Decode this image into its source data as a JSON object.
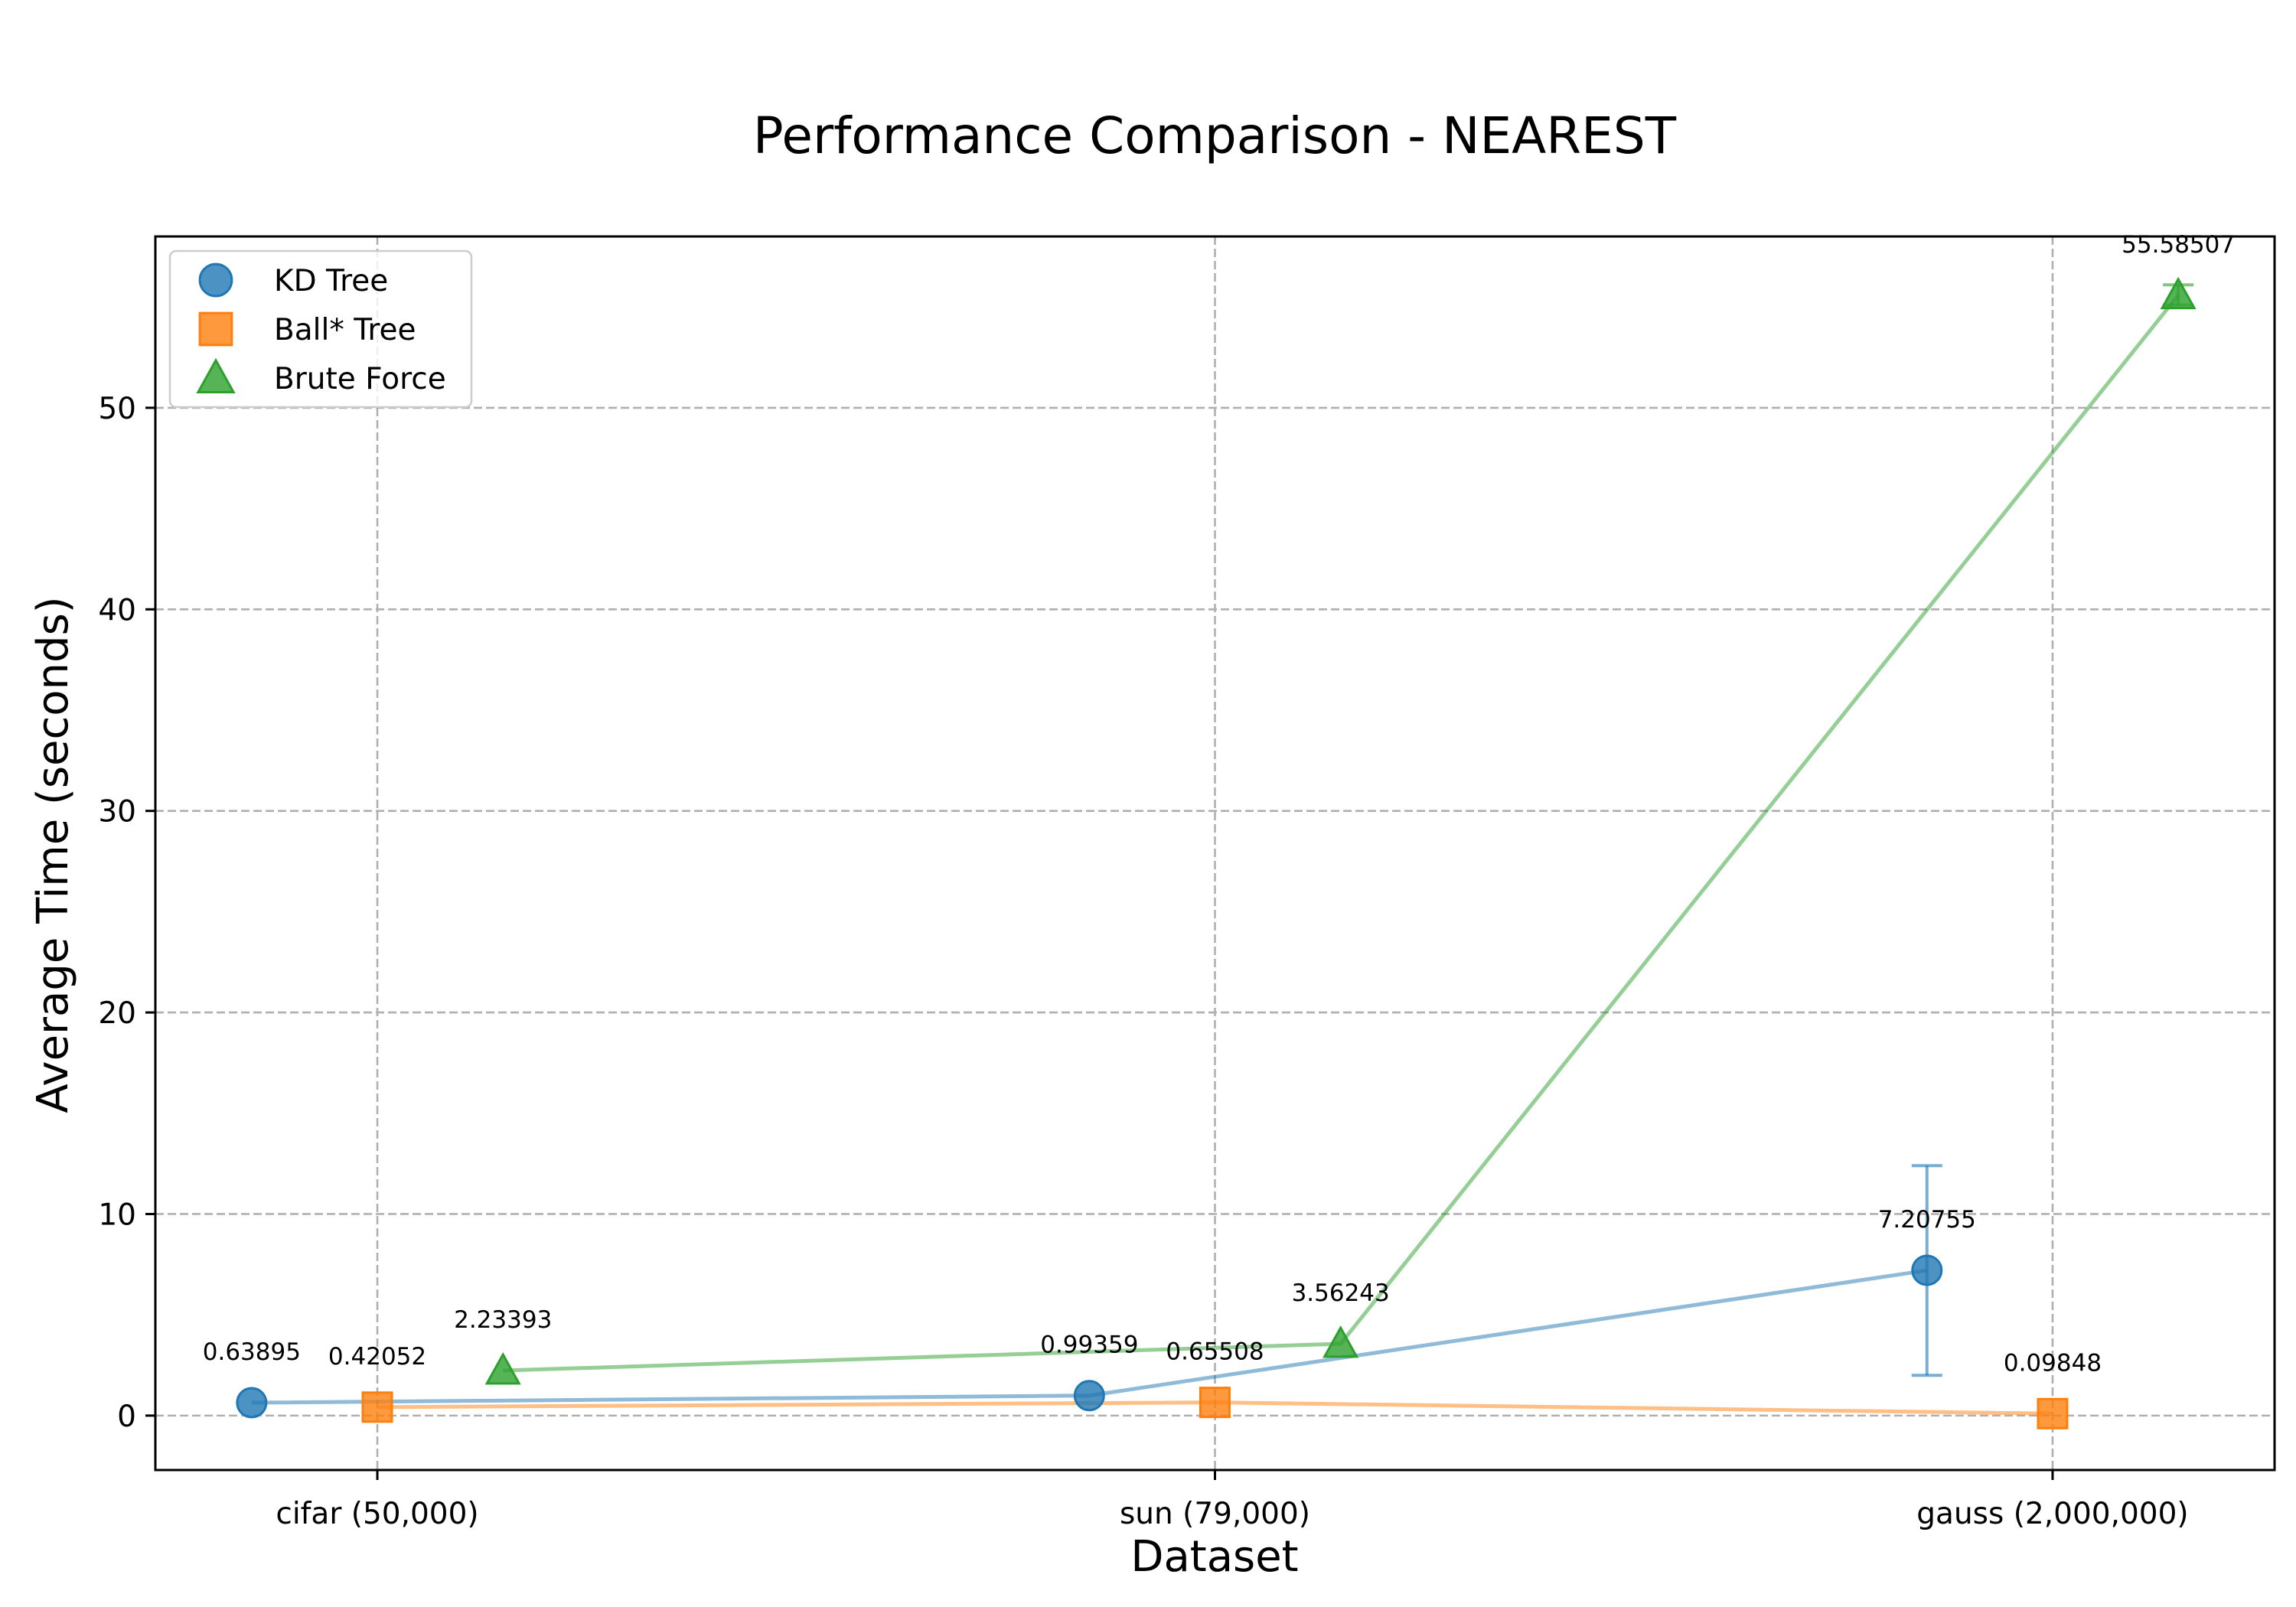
{
  "chart_data": {
    "type": "line",
    "title": "Performance Comparison - NEAREST",
    "xlabel": "Dataset",
    "ylabel": "Average Time (seconds)",
    "categories": [
      "cifar (50,000)",
      "sun (79,000)",
      "gauss (2,000,000)"
    ],
    "ylim": [
      -2.7,
      58.5
    ],
    "yticks": [
      0,
      10,
      20,
      30,
      40,
      50
    ],
    "grid": true,
    "legend_position": "upper-left",
    "series": [
      {
        "name": "KD Tree",
        "marker": "circle",
        "color": "#1f77b4",
        "offset": -0.15,
        "values": [
          0.63895,
          0.99359,
          7.20755
        ],
        "labels": [
          "0.63895",
          "0.99359",
          "7.20755"
        ],
        "error": [
          null,
          null,
          [
            2.0,
            12.4
          ]
        ]
      },
      {
        "name": "Ball* Tree",
        "marker": "square",
        "color": "#ff7f0e",
        "offset": 0,
        "values": [
          0.42052,
          0.65508,
          0.09848
        ],
        "labels": [
          "0.42052",
          "0.65508",
          "0.09848"
        ],
        "error": [
          null,
          null,
          null
        ]
      },
      {
        "name": "Brute Force",
        "marker": "triangle",
        "color": "#2ca02c",
        "offset": 0.15,
        "values": [
          2.23393,
          3.56243,
          55.58507
        ],
        "labels": [
          "2.23393",
          "3.56243",
          "55.58507"
        ],
        "error": [
          null,
          null,
          [
            55.1,
            56.1
          ]
        ]
      }
    ]
  }
}
